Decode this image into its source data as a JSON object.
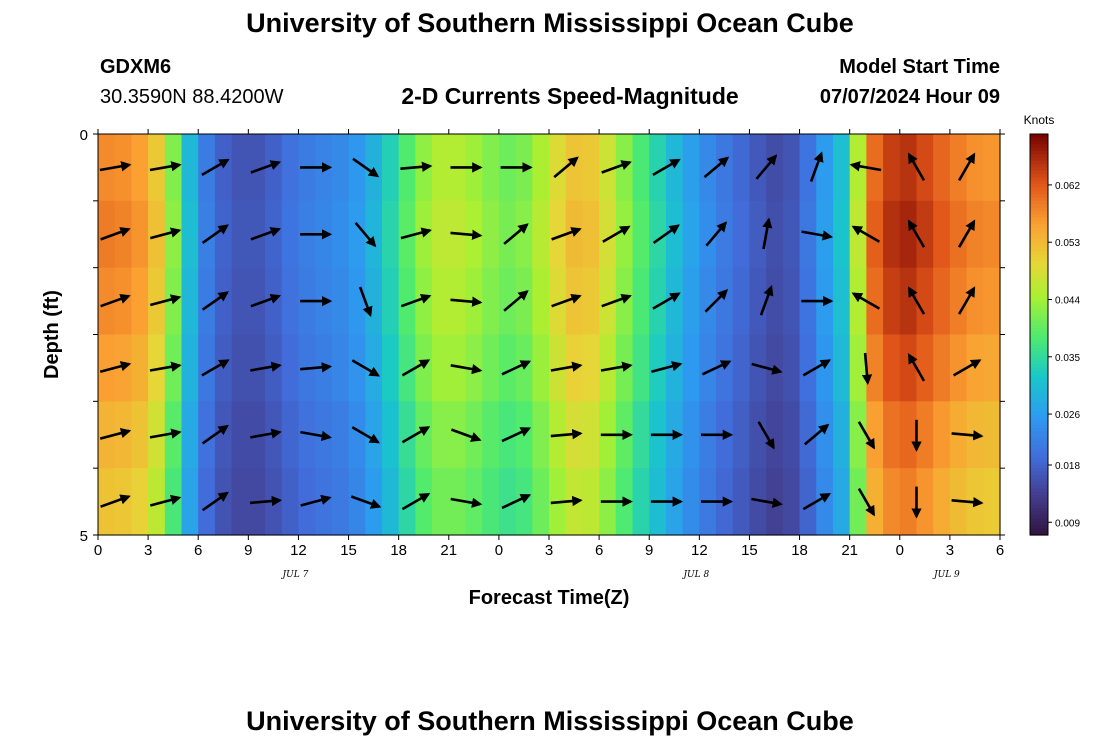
{
  "header": {
    "title": "University of Southern Mississippi Ocean Cube",
    "station_id": "GDXM6",
    "coordinates": "30.3590N  88.4200W",
    "subtitle": "2-D Currents Speed-Magnitude",
    "model_start_label": "Model Start Time",
    "model_start_value": "07/07/2024 Hour 09"
  },
  "footer": {
    "title": "University of Southern Mississippi Ocean Cube"
  },
  "chart_data": {
    "type": "heatmap",
    "xlabel": "Forecast Time(Z)",
    "ylabel": "Depth (ft)",
    "x_ticks": [
      "0",
      "3",
      "6",
      "9",
      "12",
      "15",
      "18",
      "21",
      "0",
      "3",
      "6",
      "9",
      "12",
      "15",
      "18",
      "21",
      "0",
      "3",
      "6"
    ],
    "date_labels": [
      {
        "label": "JUL 7",
        "at_tick": 4
      },
      {
        "label": "JUL 8",
        "at_tick": 12
      },
      {
        "label": "JUL 9",
        "at_tick": 17
      }
    ],
    "ylim": [
      0,
      5
    ],
    "y_ticks": [
      "0",
      "5"
    ],
    "colorbar": {
      "unit": "Knots",
      "min": 0.007,
      "max": 0.07,
      "ticks": [
        "0.009",
        "0.018",
        "0.026",
        "0.035",
        "0.044",
        "0.053",
        "0.062"
      ],
      "tick_values": [
        0.009,
        0.018,
        0.026,
        0.035,
        0.044,
        0.053,
        0.062
      ]
    },
    "speed_profile": {
      "hours": [
        0,
        1,
        2,
        3,
        4,
        5,
        6,
        7,
        8,
        9,
        10,
        11,
        12,
        13,
        14,
        15,
        16,
        17,
        18,
        19,
        20,
        21,
        22,
        23,
        24,
        25,
        26,
        27,
        28,
        29,
        30,
        31,
        32,
        33,
        34,
        35,
        36,
        37,
        38,
        39,
        40,
        41,
        42,
        43,
        44,
        45,
        46,
        47,
        48,
        49,
        50,
        51,
        52,
        53,
        54
      ],
      "speed": [
        0.058,
        0.058,
        0.057,
        0.055,
        0.048,
        0.036,
        0.024,
        0.019,
        0.017,
        0.016,
        0.017,
        0.019,
        0.021,
        0.022,
        0.023,
        0.024,
        0.027,
        0.031,
        0.036,
        0.041,
        0.045,
        0.046,
        0.045,
        0.043,
        0.041,
        0.04,
        0.043,
        0.047,
        0.051,
        0.053,
        0.05,
        0.045,
        0.04,
        0.036,
        0.032,
        0.028,
        0.025,
        0.022,
        0.02,
        0.018,
        0.016,
        0.015,
        0.018,
        0.023,
        0.029,
        0.033,
        0.058,
        0.063,
        0.066,
        0.065,
        0.062,
        0.06,
        0.058,
        0.057,
        0.057
      ]
    },
    "depth_rows": [
      {
        "label": "0",
        "factor": 1.0
      },
      {
        "label": "1",
        "factor": 1.02
      },
      {
        "label": "2",
        "factor": 1.0
      },
      {
        "label": "3",
        "factor": 0.97
      },
      {
        "label": "4",
        "factor": 0.93
      },
      {
        "label": "5",
        "factor": 0.9
      }
    ],
    "vector_times": [
      1,
      4,
      7,
      10,
      13,
      16,
      19,
      22,
      25,
      28,
      31,
      34,
      37,
      40,
      43,
      46,
      49,
      52
    ],
    "vectors_deg": [
      [
        80,
        80,
        60,
        70,
        90,
        125,
        85,
        90,
        90,
        50,
        70,
        60,
        50,
        40,
        20,
        280,
        330,
        30
      ],
      [
        70,
        75,
        55,
        70,
        90,
        140,
        75,
        95,
        50,
        70,
        60,
        55,
        40,
        10,
        100,
        300,
        330,
        30
      ],
      [
        70,
        75,
        55,
        70,
        90,
        160,
        70,
        95,
        50,
        70,
        70,
        60,
        45,
        20,
        90,
        300,
        330,
        30
      ],
      [
        75,
        80,
        60,
        80,
        85,
        120,
        60,
        100,
        65,
        80,
        80,
        75,
        65,
        105,
        60,
        175,
        330,
        60
      ],
      [
        75,
        80,
        55,
        80,
        100,
        120,
        60,
        110,
        65,
        85,
        90,
        90,
        90,
        150,
        50,
        150,
        180,
        95
      ],
      [
        70,
        75,
        55,
        85,
        75,
        110,
        60,
        100,
        65,
        85,
        90,
        90,
        90,
        100,
        60,
        150,
        180,
        95
      ]
    ]
  }
}
